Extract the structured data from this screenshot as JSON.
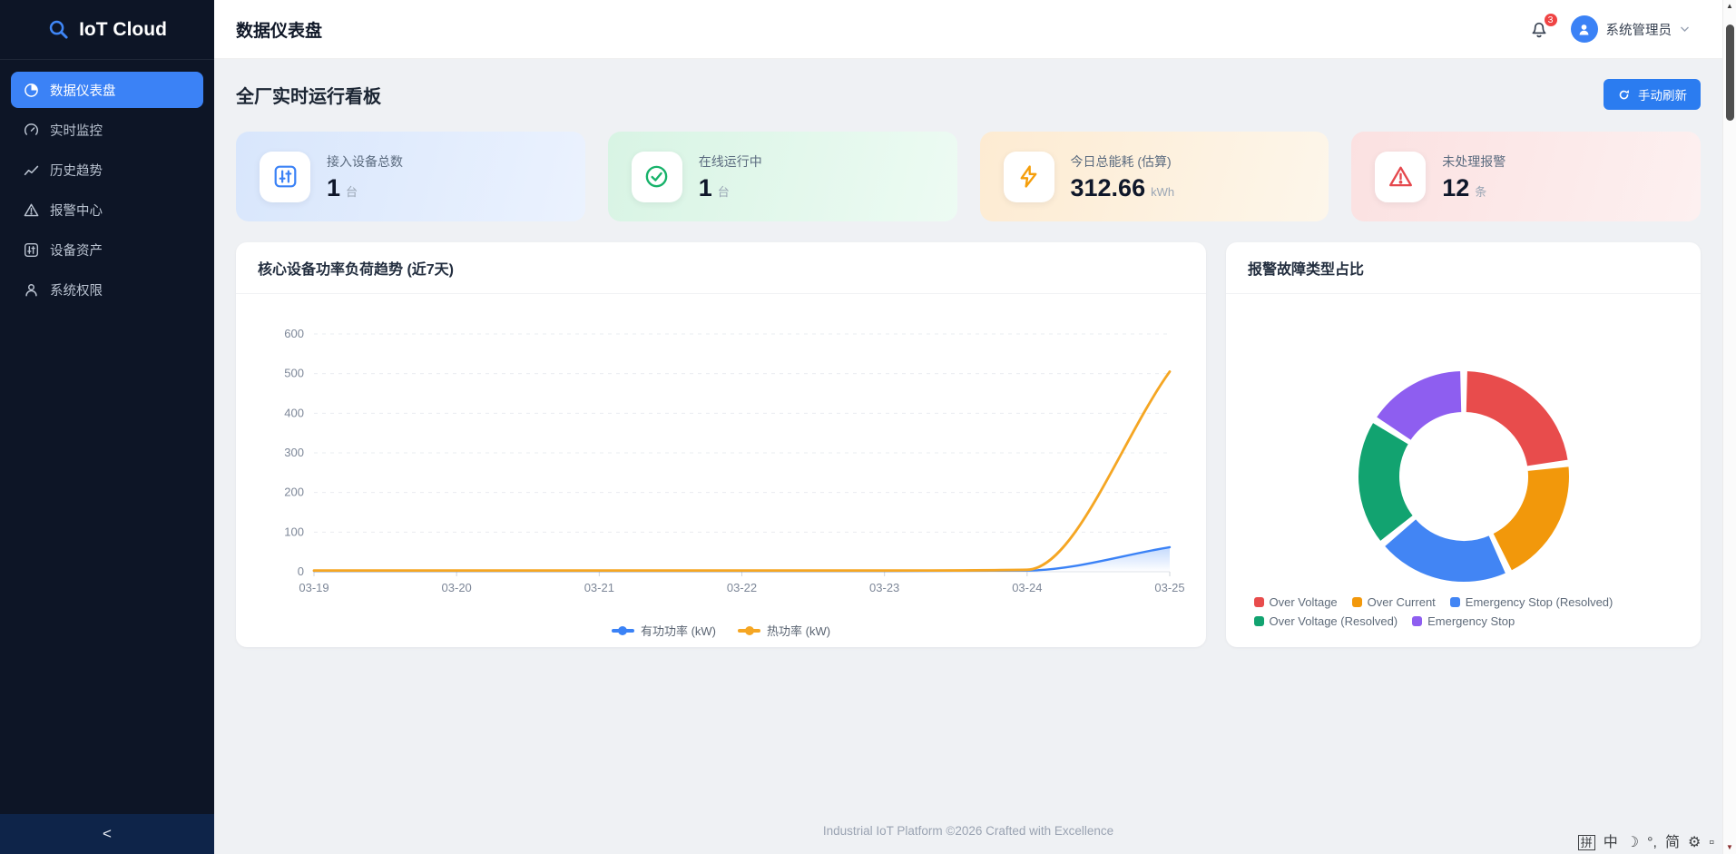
{
  "app": {
    "logo_text": "IoT Cloud"
  },
  "sidebar": {
    "items": [
      {
        "id": "dashboard",
        "label": "数据仪表盘",
        "icon": "pie-chart-icon",
        "active": true
      },
      {
        "id": "monitor",
        "label": "实时监控",
        "icon": "gauge-icon",
        "active": false
      },
      {
        "id": "history",
        "label": "历史趋势",
        "icon": "trend-icon",
        "active": false
      },
      {
        "id": "alarm",
        "label": "报警中心",
        "icon": "warning-triangle-icon",
        "active": false
      },
      {
        "id": "assets",
        "label": "设备资产",
        "icon": "sliders-icon",
        "active": false
      },
      {
        "id": "permission",
        "label": "系统权限",
        "icon": "user-icon",
        "active": false
      }
    ],
    "collapse_label": "<"
  },
  "header": {
    "title": "数据仪表盘",
    "notification_count": "3",
    "user_name": "系统管理员"
  },
  "dashboard": {
    "section_title": "全厂实时运行看板",
    "refresh_label": "手动刷新",
    "stats": [
      {
        "label": "接入设备总数",
        "value": "1",
        "unit": "台",
        "icon": "sliders-icon",
        "color": "#3b82f6",
        "bg": "linear-gradient(105deg,#d8e6fc,#ebf2fe)"
      },
      {
        "label": "在线运行中",
        "value": "1",
        "unit": "台",
        "icon": "check-circle-icon",
        "color": "#17b26a",
        "bg": "linear-gradient(105deg,#d8f4e4,#edfbf3)"
      },
      {
        "label": "今日总能耗 (估算)",
        "value": "312.66",
        "unit": "kWh",
        "icon": "bolt-icon",
        "color": "#f59e0b",
        "bg": "linear-gradient(105deg,#fdebd2,#fdf6ea)"
      },
      {
        "label": "未处理报警",
        "value": "12",
        "unit": "条",
        "icon": "warning-triangle-icon",
        "color": "#e5484d",
        "bg": "linear-gradient(105deg,#fbe1e1,#fdf0f0)"
      }
    ]
  },
  "chart_data": [
    {
      "type": "line",
      "title": "核心设备功率负荷趋势 (近7天)",
      "categories": [
        "03-19",
        "03-20",
        "03-21",
        "03-22",
        "03-23",
        "03-24",
        "03-25"
      ],
      "series": [
        {
          "name": "有功功率 (kW)",
          "color": "#3b82f6",
          "values": [
            2,
            2,
            2,
            2,
            2,
            3,
            62
          ],
          "area": true
        },
        {
          "name": "热功率 (kW)",
          "color": "#f5a623",
          "values": [
            3,
            3,
            3,
            3,
            3,
            5,
            505
          ],
          "area": false
        }
      ],
      "xlabel": "",
      "ylabel": "",
      "ylim": [
        0,
        600
      ],
      "ytick_step": 100,
      "grid": "dashed",
      "smooth": true,
      "legend_position": "bottom"
    },
    {
      "type": "pie",
      "title": "报警故障类型占比",
      "donut": true,
      "labels": [
        "Over Voltage",
        "Over Current",
        "Emergency Stop (Resolved)",
        "Over Voltage (Resolved)",
        "Emergency Stop"
      ],
      "values": [
        23,
        20,
        21,
        20,
        16
      ],
      "colors": [
        "#e84c4c",
        "#f2980b",
        "#4285f4",
        "#12a370",
        "#8e5ef0"
      ],
      "legend_position": "bottom"
    }
  ],
  "footer": {
    "text": "Industrial IoT Platform ©2026 Crafted with Excellence"
  },
  "ime_bar": {
    "items": [
      {
        "name": "ime-pinyin-icon",
        "glyph": "拼",
        "boxed": true
      },
      {
        "name": "ime-chinese-icon",
        "glyph": "中"
      },
      {
        "name": "ime-halfwidth-icon",
        "glyph": "☽"
      },
      {
        "name": "ime-punctuation-icon",
        "glyph": "°,"
      },
      {
        "name": "ime-simplified-icon",
        "glyph": "简"
      },
      {
        "name": "ime-settings-icon",
        "glyph": "⚙"
      },
      {
        "name": "ime-keyboard-icon",
        "glyph": "▫"
      }
    ]
  },
  "scrollbar": {
    "up": "▲",
    "down": "▼"
  },
  "colors": {
    "accent": "#3b82f6",
    "badge": "#ef4444",
    "refresh_button": "#2b7cf0"
  }
}
